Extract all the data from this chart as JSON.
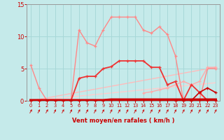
{
  "bg_color": "#c5eaea",
  "grid_color": "#a8d8d8",
  "xlabel": "Vent moyen/en rafales ( km/h )",
  "xlabel_color": "#cc0000",
  "tick_color": "#cc0000",
  "xlim": [
    -0.5,
    23.5
  ],
  "ylim": [
    0,
    15
  ],
  "yticks": [
    0,
    5,
    10,
    15
  ],
  "xticks": [
    0,
    1,
    2,
    3,
    4,
    5,
    6,
    7,
    8,
    9,
    10,
    11,
    12,
    13,
    14,
    15,
    16,
    17,
    18,
    19,
    20,
    21,
    22,
    23
  ],
  "series": [
    {
      "label": "pink_zigzag_upper",
      "x": [
        0,
        1,
        2,
        3,
        4,
        5,
        6,
        7,
        8,
        9,
        10,
        11,
        12,
        13,
        14,
        15,
        16,
        17,
        18,
        19,
        20,
        21,
        22,
        23
      ],
      "y": [
        5.5,
        2.0,
        0.05,
        0.05,
        0.05,
        0.05,
        11.0,
        9.0,
        8.5,
        11.0,
        13.0,
        13.0,
        13.0,
        13.0,
        11.0,
        10.5,
        11.5,
        10.3,
        7.0,
        0.05,
        0.05,
        0.05,
        5.0,
        5.0
      ],
      "color": "#ff8888",
      "lw": 1.0,
      "marker": "+",
      "ms": 3.5,
      "zorder": 2
    },
    {
      "label": "light_diagonal_top",
      "x": [
        0,
        23
      ],
      "y": [
        0,
        5.2
      ],
      "color": "#ffbbbb",
      "lw": 1.0,
      "marker": null,
      "ms": 0,
      "zorder": 1
    },
    {
      "label": "light_diagonal_bottom",
      "x": [
        0,
        23
      ],
      "y": [
        0,
        2.8
      ],
      "color": "#ffcccc",
      "lw": 1.0,
      "marker": null,
      "ms": 0,
      "zorder": 1
    },
    {
      "label": "medium_red_curve",
      "x": [
        0,
        1,
        2,
        3,
        4,
        5,
        6,
        7,
        8,
        9,
        10,
        11,
        12,
        13,
        14,
        15,
        16,
        17,
        18,
        19,
        20,
        21,
        22,
        23
      ],
      "y": [
        0.05,
        0.05,
        0.05,
        0.05,
        0.05,
        0.05,
        3.5,
        3.8,
        3.8,
        5.0,
        5.3,
        6.2,
        6.2,
        6.2,
        6.2,
        5.2,
        5.2,
        2.5,
        3.0,
        0.05,
        2.5,
        1.3,
        0.05,
        0.05
      ],
      "color": "#ee3333",
      "lw": 1.3,
      "marker": "+",
      "ms": 3.5,
      "zorder": 4
    },
    {
      "label": "dark_red_flat_thick",
      "x": [
        0,
        1,
        2,
        3,
        4,
        5,
        6,
        7,
        8,
        9,
        10,
        11,
        12,
        13,
        14,
        15,
        16,
        17,
        18,
        19,
        20,
        21,
        22,
        23
      ],
      "y": [
        0.05,
        0.05,
        0.05,
        0.05,
        0.05,
        0.05,
        0.05,
        0.05,
        0.05,
        0.05,
        0.15,
        0.15,
        0.15,
        0.15,
        0.15,
        0.15,
        0.15,
        0.15,
        0.15,
        0.15,
        0.15,
        0.15,
        0.15,
        0.15
      ],
      "color": "#cc0000",
      "lw": 3.0,
      "marker": "+",
      "ms": 3.0,
      "zorder": 5
    },
    {
      "label": "light_pink_right_curve",
      "x": [
        14,
        15,
        16,
        17,
        18,
        19,
        20,
        21,
        22,
        23
      ],
      "y": [
        1.2,
        1.4,
        1.7,
        2.0,
        2.5,
        3.0,
        2.5,
        3.0,
        5.2,
        5.2
      ],
      "color": "#ffaaaa",
      "lw": 1.0,
      "marker": "+",
      "ms": 3.0,
      "zorder": 3
    },
    {
      "label": "red_right_spike",
      "x": [
        18,
        19,
        20,
        21,
        22,
        23
      ],
      "y": [
        0.05,
        0.05,
        0.05,
        1.3,
        2.0,
        1.3
      ],
      "color": "#cc0000",
      "lw": 1.2,
      "marker": "+",
      "ms": 3.0,
      "zorder": 5
    }
  ]
}
